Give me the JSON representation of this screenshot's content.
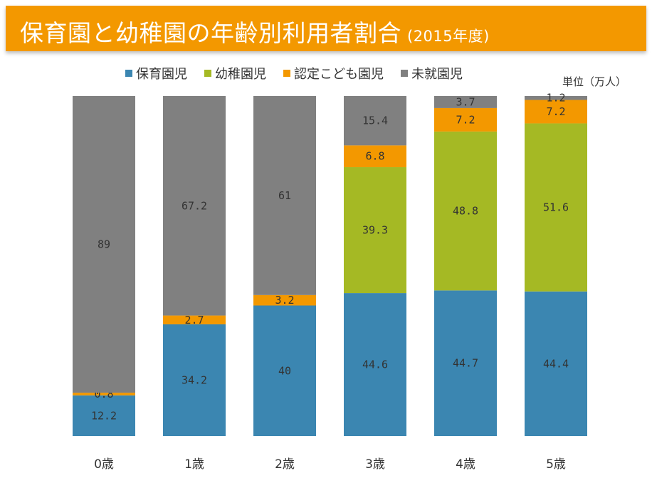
{
  "title": "保育園と幼稚園の年齢別利用者割合",
  "subtitle": "(2015年度)",
  "unit_label": "単位（万人）",
  "chart_data": {
    "type": "bar",
    "stacked": true,
    "normalized_100_percent": true,
    "title": "保育園と幼稚園の年齢別利用者割合 (2015年度)",
    "xlabel": "",
    "ylabel": "単位（万人）",
    "legend_position": "top",
    "categories": [
      "0歳",
      "1歳",
      "2歳",
      "3歳",
      "4歳",
      "5歳"
    ],
    "series": [
      {
        "name": "保育園児",
        "color": "#3b86b1",
        "values": [
          12.2,
          34.2,
          40,
          44.6,
          44.7,
          44.4
        ]
      },
      {
        "name": "幼稚園児",
        "color": "#a5b924",
        "values": [
          0,
          0,
          0,
          39.3,
          48.8,
          51.6
        ]
      },
      {
        "name": "認定こども園児",
        "color": "#f39800",
        "values": [
          0.8,
          2.7,
          3.2,
          6.8,
          7.2,
          7.2
        ]
      },
      {
        "name": "未就園児",
        "color": "#808080",
        "values": [
          89,
          67.2,
          61,
          15.4,
          3.7,
          1.2
        ]
      }
    ],
    "data_labels": [
      [
        "12.2",
        "",
        "0.8",
        "89"
      ],
      [
        "34.2",
        "",
        "2.7",
        "67.2"
      ],
      [
        "40",
        "",
        "3.2",
        "61"
      ],
      [
        "44.6",
        "39.3",
        "6.8",
        "15.4"
      ],
      [
        "44.7",
        "48.8",
        "7.2",
        "3.7"
      ],
      [
        "44.4",
        "51.6",
        "7.2",
        "1.2"
      ]
    ]
  }
}
